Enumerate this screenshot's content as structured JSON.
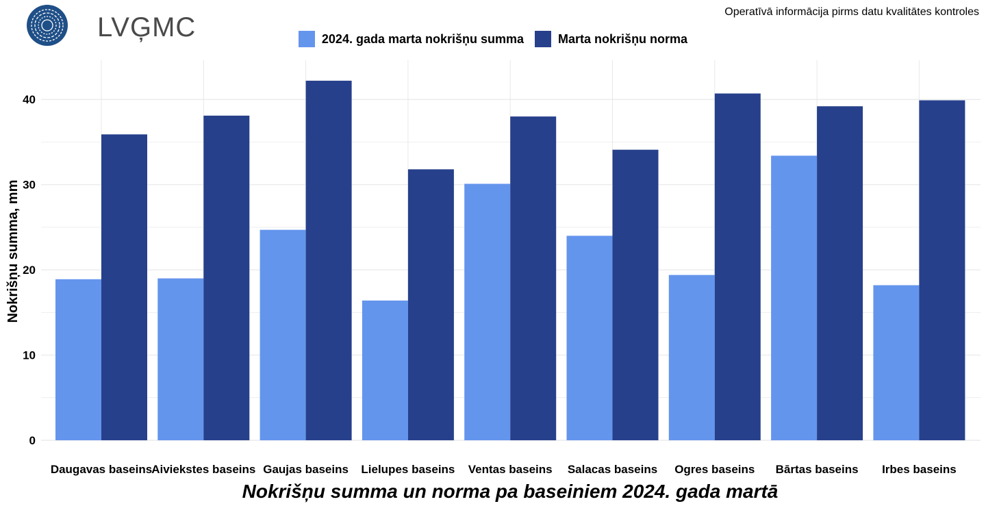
{
  "header": {
    "logo_text": "LVĢMC",
    "note": "Operatīvā informācija pirms datu kvalitātes kontroles"
  },
  "colors": {
    "actual": "#6495ED",
    "norm": "#27408B",
    "logo": "#1f4f87",
    "grid": "#e8e8e8"
  },
  "chart_data": {
    "type": "bar",
    "title": "Nokrišņu summa un norma pa baseiniem 2024. gada martā",
    "xlabel": "",
    "ylabel": "Nokrišņu summa, mm",
    "ylim": [
      0,
      44.6
    ],
    "yticks": [
      0,
      10,
      20,
      30,
      40
    ],
    "grid": true,
    "legend_position": "top-center",
    "categories": [
      "Daugavas baseins",
      "Aiviekstes baseins",
      "Gaujas baseins",
      "Lielupes baseins",
      "Ventas baseins",
      "Salacas baseins",
      "Ogres baseins",
      "Bārtas baseins",
      "Irbes baseins"
    ],
    "series": [
      {
        "name": "2024. gada marta nokrišņu summa",
        "values": [
          18.9,
          19.0,
          24.7,
          16.4,
          30.1,
          24.0,
          19.4,
          33.4,
          18.2
        ]
      },
      {
        "name": "Marta nokrišņu norma",
        "values": [
          35.9,
          38.1,
          42.2,
          31.8,
          38.0,
          34.1,
          40.7,
          39.2,
          39.9
        ]
      }
    ]
  }
}
